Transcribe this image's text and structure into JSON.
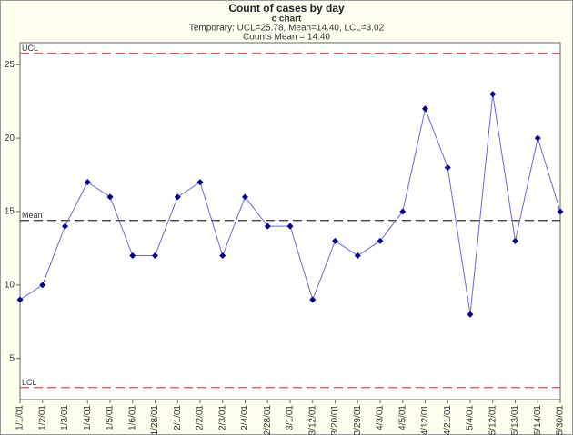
{
  "chart_data": {
    "type": "line",
    "title": "Count of cases by day",
    "subtitle": "c chart",
    "notes": [
      "Temporary: UCL=25.78, Mean=14.40, LCL=3.02",
      "Counts Mean = 14.40"
    ],
    "categories": [
      "1/1/01",
      "1/2/01",
      "1/3/01",
      "1/4/01",
      "1/5/01",
      "1/6/01",
      "1/28/01",
      "2/1/01",
      "2/2/01",
      "2/3/01",
      "2/4/01",
      "2/28/01",
      "3/1/01",
      "3/12/01",
      "3/20/01",
      "3/29/01",
      "4/3/01",
      "4/5/01",
      "4/12/01",
      "4/21/01",
      "5/4/01",
      "5/12/01",
      "5/13/01",
      "5/14/01",
      "5/30/01"
    ],
    "series": [
      {
        "name": "Counts",
        "color": "#00008b",
        "line_color": "#6a6ad8",
        "values": [
          9,
          10,
          14,
          17,
          16,
          12,
          12,
          16,
          17,
          12,
          16,
          14,
          14,
          9,
          13,
          12,
          13,
          15,
          22,
          18,
          8,
          23,
          13,
          20,
          15
        ]
      }
    ],
    "control_lines": [
      {
        "label": "UCL",
        "value": 25.78,
        "color": "#e05050"
      },
      {
        "label": "Mean",
        "value": 14.4,
        "color": "#444444"
      },
      {
        "label": "LCL",
        "value": 3.02,
        "color": "#e05050"
      }
    ],
    "ylim": [
      2.2,
      26.5
    ],
    "yticks": [
      5,
      10,
      15,
      20,
      25
    ],
    "grid": false
  }
}
